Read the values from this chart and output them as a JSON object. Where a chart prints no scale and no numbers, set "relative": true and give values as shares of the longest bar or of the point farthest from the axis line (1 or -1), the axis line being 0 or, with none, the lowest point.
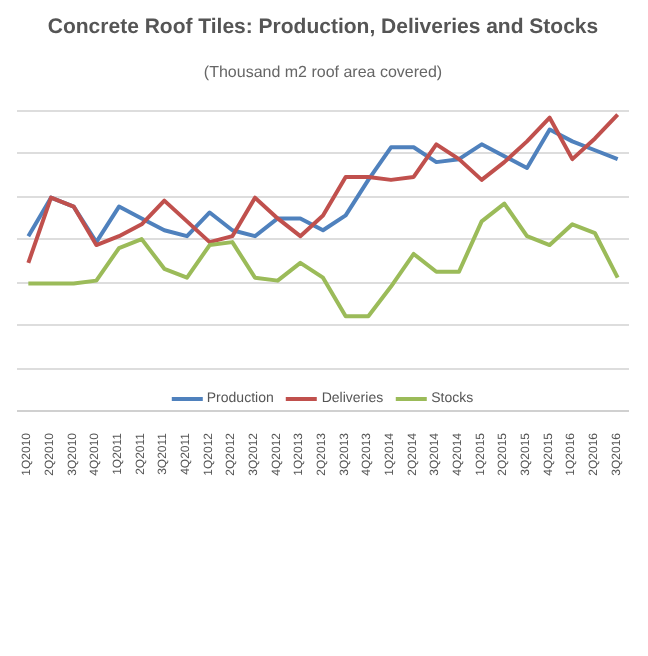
{
  "chart_data": {
    "type": "line",
    "title": "Concrete Roof Tiles: Production, Deliveries and Stocks",
    "subtitle": "(Thousand m2 roof area covered)",
    "relative": true,
    "grid": "y",
    "legend": "bottom",
    "marker": "none",
    "line_style": "solid",
    "categories": [
      "1Q2010",
      "2Q2010",
      "3Q2010",
      "4Q2010",
      "1Q2011",
      "2Q2011",
      "3Q2011",
      "4Q2011",
      "1Q2012",
      "2Q2012",
      "3Q2012",
      "4Q2012",
      "1Q2013",
      "2Q2013",
      "3Q2013",
      "4Q2013",
      "1Q2014",
      "2Q2014",
      "3Q2014",
      "4Q2014",
      "1Q2015",
      "2Q2015",
      "3Q2015",
      "4Q2015",
      "1Q2016",
      "2Q2016",
      "3Q2016"
    ],
    "series": [
      {
        "name": "Production",
        "color": "#4f81bd",
        "values": [
          0.59,
          0.72,
          0.69,
          0.57,
          0.69,
          0.65,
          0.61,
          0.59,
          0.67,
          0.61,
          0.59,
          0.65,
          0.65,
          0.61,
          0.66,
          0.78,
          0.89,
          0.89,
          0.84,
          0.85,
          0.9,
          0.86,
          0.82,
          0.95,
          0.91,
          0.88,
          0.85
        ]
      },
      {
        "name": "Deliveries",
        "color": "#c0504d",
        "values": [
          0.5,
          0.72,
          0.69,
          0.56,
          0.59,
          0.63,
          0.71,
          0.64,
          0.57,
          0.59,
          0.72,
          0.65,
          0.59,
          0.66,
          0.79,
          0.79,
          0.78,
          0.79,
          0.9,
          0.85,
          0.78,
          0.84,
          0.91,
          0.99,
          0.85,
          0.92,
          1.0
        ]
      },
      {
        "name": "Stocks",
        "color": "#9bbb59",
        "values": [
          0.43,
          0.43,
          0.43,
          0.44,
          0.55,
          0.58,
          0.48,
          0.45,
          0.56,
          0.57,
          0.45,
          0.44,
          0.5,
          0.45,
          0.32,
          0.32,
          0.42,
          0.53,
          0.47,
          0.47,
          0.64,
          0.7,
          0.59,
          0.56,
          0.63,
          0.6,
          0.45
        ]
      }
    ]
  }
}
